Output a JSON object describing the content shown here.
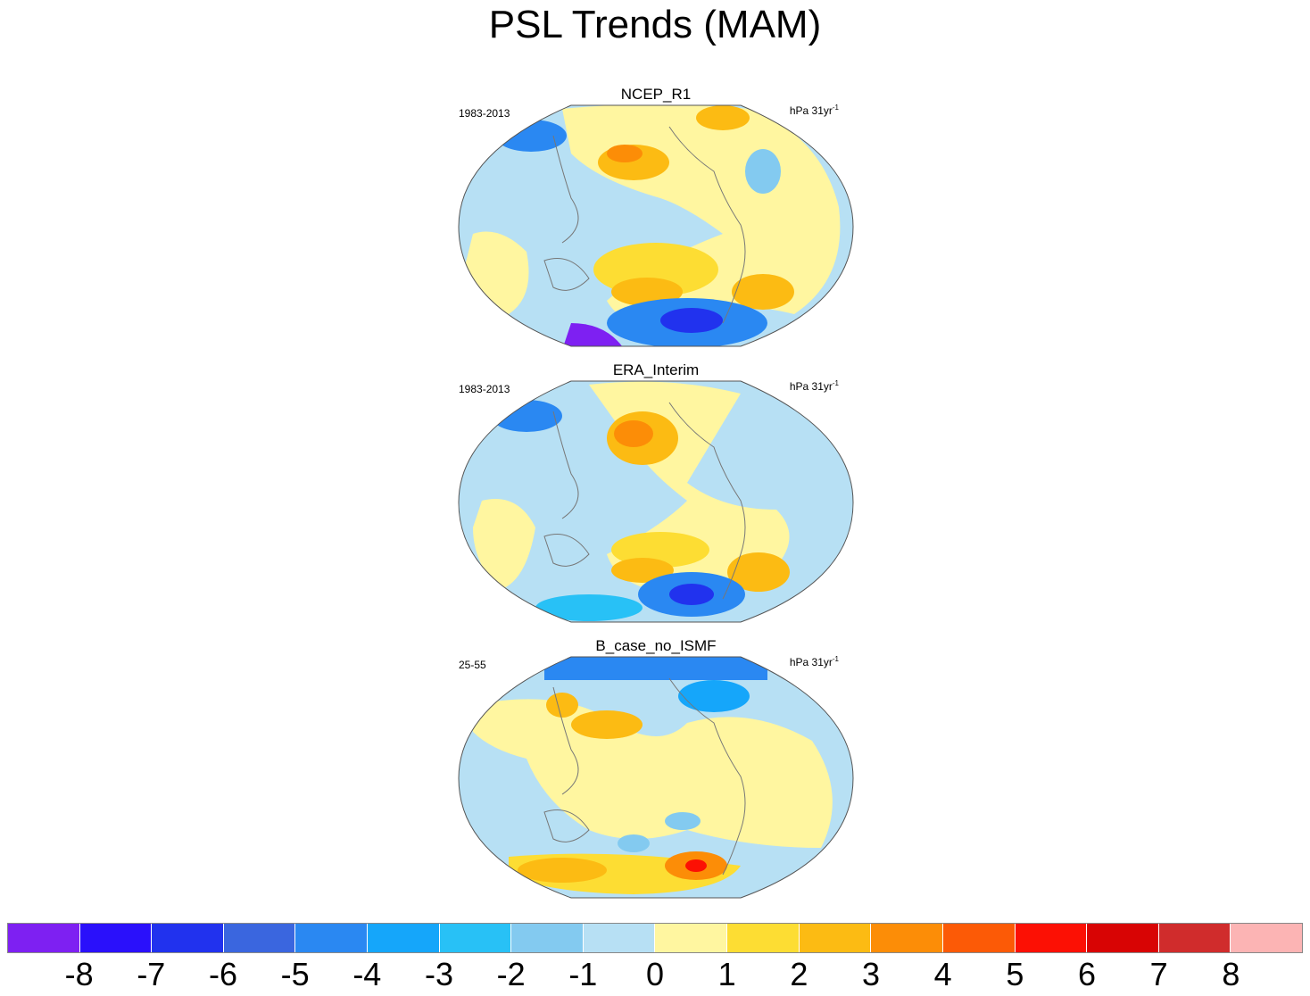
{
  "title": "PSL Trends (MAM)",
  "panels": [
    {
      "name": "NCEP_R1",
      "period": "1983-2013",
      "units_main": "hPa 31yr",
      "units_exp": "-1"
    },
    {
      "name": "ERA_Interim",
      "period": "1983-2013",
      "units_main": "hPa 31yr",
      "units_exp": "-1"
    },
    {
      "name": "B_case_no_ISMF",
      "period": "25-55",
      "units_main": "hPa 31yr",
      "units_exp": "-1"
    }
  ],
  "colorbar": {
    "labels": [
      "-8",
      "-7",
      "-6",
      "-5",
      "-4",
      "-3",
      "-2",
      "-1",
      "0",
      "1",
      "2",
      "3",
      "4",
      "5",
      "6",
      "7",
      "8"
    ],
    "colors": [
      "#7e20f2",
      "#2a10fb",
      "#2132ee",
      "#3a66df",
      "#2a88f2",
      "#15a6fa",
      "#28c1f6",
      "#83caf0",
      "#b7e0f4",
      "#fff6a0",
      "#fddd33",
      "#fcbb13",
      "#fc8d07",
      "#fc5a06",
      "#fc1004",
      "#d80404",
      "#d02c2c",
      "#fcb4b4"
    ]
  },
  "colors": {
    "ocean_neutral": "#b7e0f4",
    "coast": "#777777",
    "outline": "#555555"
  }
}
